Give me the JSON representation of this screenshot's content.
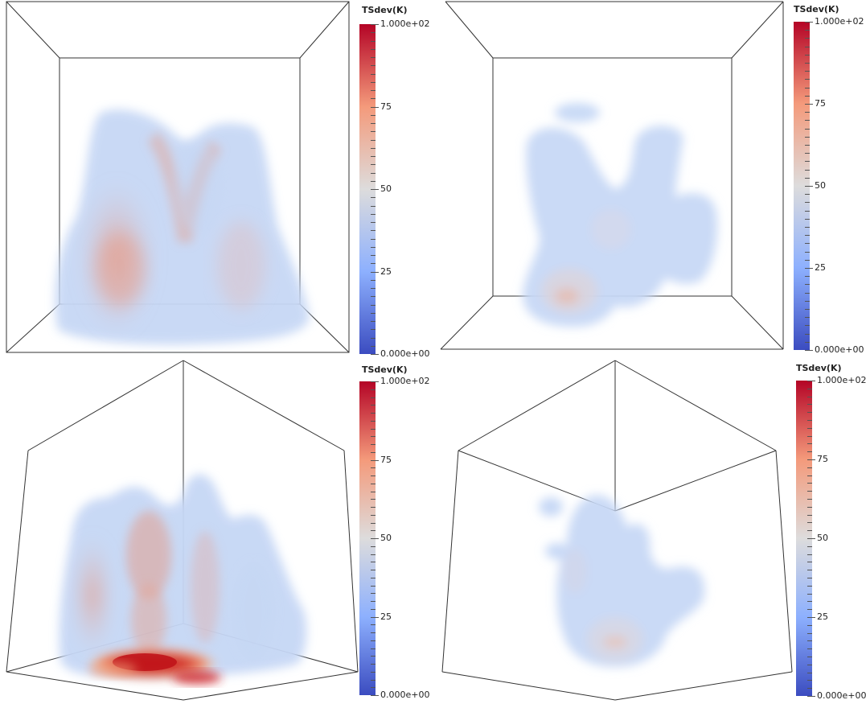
{
  "panels": [
    {
      "id": "top-left",
      "colorbar": {
        "title": "TSdev(K)",
        "range": [
          0,
          100
        ],
        "tick_labels": [
          "1.000e+02",
          "75",
          "50",
          "25",
          "0.000e+00"
        ],
        "tick_values": [
          100,
          75,
          50,
          25,
          0
        ]
      }
    },
    {
      "id": "top-right",
      "colorbar": {
        "title": "TSdev(K)",
        "range": [
          0,
          100
        ],
        "tick_labels": [
          "1.000e+02",
          "75",
          "50",
          "25",
          "0.000e+00"
        ],
        "tick_values": [
          100,
          75,
          50,
          25,
          0
        ]
      }
    },
    {
      "id": "bottom-left",
      "colorbar": {
        "title": "TSdev(K)",
        "range": [
          0,
          100
        ],
        "tick_labels": [
          "1.000e+02",
          "75",
          "50",
          "25",
          "0.000e+00"
        ],
        "tick_values": [
          100,
          75,
          50,
          25,
          0
        ]
      }
    },
    {
      "id": "bottom-right",
      "colorbar": {
        "title": "TSdev(K)",
        "range": [
          0,
          100
        ],
        "tick_labels": [
          "1.000e+02",
          "75",
          "50",
          "25",
          "0.000e+00"
        ],
        "tick_values": [
          100,
          75,
          50,
          25,
          0
        ]
      }
    }
  ],
  "colormap": {
    "name": "cool-to-warm",
    "stops": [
      "#3b4cc0",
      "#8db0fe",
      "#dddcdc",
      "#f49a7b",
      "#b40426"
    ]
  }
}
